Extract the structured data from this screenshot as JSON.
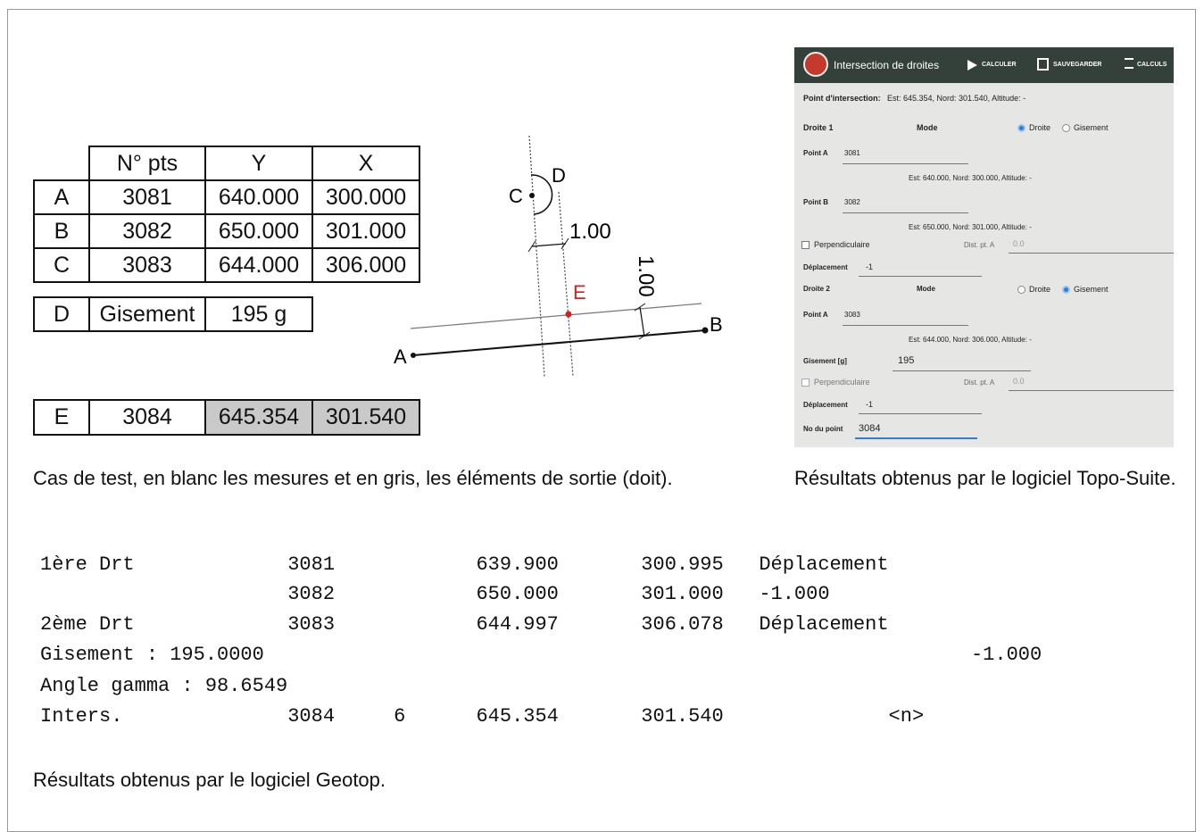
{
  "table": {
    "header": [
      "N° pts",
      "Y",
      "X"
    ],
    "rows": [
      [
        "A",
        "3081",
        "640.000",
        "300.000"
      ],
      [
        "B",
        "3082",
        "650.000",
        "301.000"
      ],
      [
        "C",
        "3083",
        "644.000",
        "306.000"
      ]
    ],
    "row_d": [
      "D",
      "Gisement",
      "195 g"
    ],
    "row_e": [
      "E",
      "3084",
      "645.354",
      "301.540"
    ]
  },
  "diagram": {
    "points": [
      "A",
      "B",
      "C",
      "D",
      "E"
    ],
    "dimensions": [
      "1.00",
      "1.00"
    ]
  },
  "captions": [
    "Cas de test, en blanc les mesures et en gris, les éléments de sortie (doit).",
    "Résultats obtenus par le logiciel Topo-Suite.",
    "Résultats obtenus par le logiciel Geotop."
  ],
  "app": {
    "title": "Intersection de droites",
    "actions": [
      "CALCULER",
      "SAUVEGARDER",
      "CALCULS"
    ],
    "intersection_label": "Point d'intersection:",
    "intersection_value": "Est: 645.354, Nord: 301.540, Altitude: -",
    "line_1": {
      "label": "Droite 1",
      "mode_label": "Mode",
      "mode_options": [
        "Droite",
        "Gisement"
      ],
      "point_a_label": "Point A",
      "point_a": "3081",
      "point_a_info": "Est: 640.000, Nord: 300.000, Altitude: -",
      "point_b_label": "Point B",
      "point_b": "3082",
      "point_b_info": "Est: 650.000, Nord: 301.000, Altitude: -",
      "perpendicular_label": "Perpendiculaire",
      "distance_label": "Dist. pt. A",
      "distance": "0.0",
      "offset_label": "Déplacement",
      "offset": "-1"
    },
    "line_2": {
      "label": "Droite 2",
      "mode_label": "Mode",
      "mode_options": [
        "Droite",
        "Gisement"
      ],
      "point_a_label": "Point A",
      "point_a": "3083",
      "point_a_info": "Est: 644.000, Nord: 306.000, Altitude: -",
      "bearing_label": "Gisement [g]",
      "bearing": "195",
      "perpendicular_label": "Perpendiculaire",
      "distance_label": "Dist. pt. A",
      "distance": "0.0",
      "offset_label": "Déplacement",
      "offset": "-1"
    },
    "point_number_label": "No du point",
    "point_number": "3084"
  },
  "geotop": {
    "lines": [
      [
        "1ère Drt",
        "3081",
        "639.900",
        "300.995",
        "Déplacement"
      ],
      [
        "3082",
        "650.000",
        "301.000",
        "-1.000"
      ],
      [
        "2ème Drt",
        "3083",
        "644.997",
        "306.078",
        "Déplacement"
      ],
      [
        "Gisement : 195.0000",
        "-1.000"
      ],
      [
        "Angle gamma : 98.6549"
      ],
      [
        "Inters.",
        "3084",
        "6",
        "645.354",
        "301.540",
        "<n>"
      ]
    ]
  }
}
